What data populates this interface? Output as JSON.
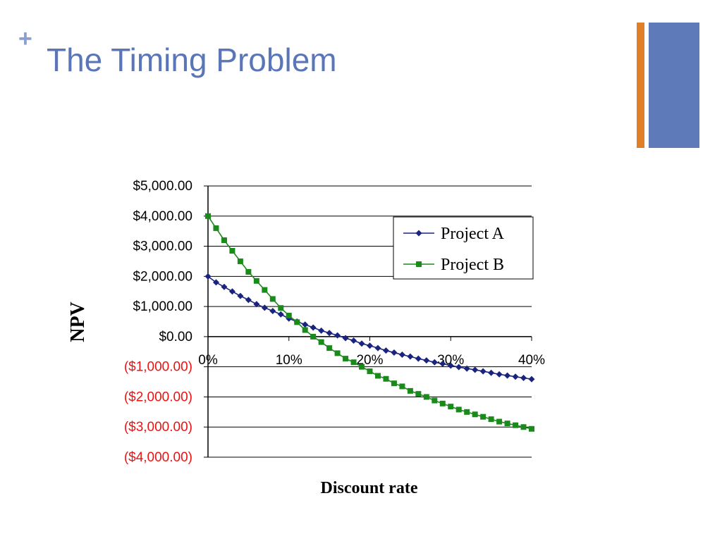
{
  "slide": {
    "plus_mark": "+",
    "title": "The Timing Problem"
  },
  "colors": {
    "title": "#5b76b8",
    "accent_orange": "#e07f27",
    "accent_blue": "#5f7ab9",
    "series_a": "#1a237e",
    "series_b": "#1a8a1a",
    "negative_label": "#ee1111"
  },
  "chart_data": {
    "type": "line",
    "xlabel": "Discount rate",
    "ylabel": "NPV",
    "xlim": [
      0,
      40
    ],
    "ylim": [
      -4000,
      5000
    ],
    "y_ticks": [
      5000,
      4000,
      3000,
      2000,
      1000,
      0,
      -1000,
      -2000,
      -3000,
      -4000
    ],
    "y_tick_labels": [
      "$5,000.00",
      "$4,000.00",
      "$3,000.00",
      "$2,000.00",
      "$1,000.00",
      "$0.00",
      "($1,000.00)",
      "($2,000.00)",
      "($3,000.00)",
      "($4,000.00)"
    ],
    "x_ticks": [
      0,
      10,
      20,
      30,
      40
    ],
    "x_tick_labels": [
      "0%",
      "10%",
      "20%",
      "30%",
      "40%"
    ],
    "grid": true,
    "legend_position": "top-right",
    "x": [
      0,
      1,
      2,
      3,
      4,
      5,
      6,
      7,
      8,
      9,
      10,
      11,
      12,
      13,
      14,
      15,
      16,
      17,
      18,
      19,
      20,
      21,
      22,
      23,
      24,
      25,
      26,
      27,
      28,
      29,
      30,
      31,
      32,
      33,
      34,
      35,
      36,
      37,
      38,
      39,
      40
    ],
    "series": [
      {
        "name": "Project A",
        "marker": "diamond",
        "values": [
          2000,
          1800,
          1650,
          1500,
          1350,
          1220,
          1080,
          960,
          850,
          740,
          600,
          500,
          400,
          300,
          200,
          120,
          40,
          -50,
          -130,
          -230,
          -300,
          -380,
          -460,
          -530,
          -600,
          -660,
          -730,
          -790,
          -850,
          -900,
          -960,
          -1010,
          -1060,
          -1100,
          -1150,
          -1200,
          -1250,
          -1290,
          -1330,
          -1370,
          -1410
        ]
      },
      {
        "name": "Project B",
        "marker": "square",
        "values": [
          4000,
          3600,
          3200,
          2850,
          2500,
          2150,
          1850,
          1550,
          1250,
          950,
          700,
          480,
          220,
          0,
          -180,
          -380,
          -550,
          -730,
          -850,
          -1000,
          -1150,
          -1300,
          -1400,
          -1550,
          -1650,
          -1800,
          -1900,
          -2000,
          -2120,
          -2220,
          -2320,
          -2420,
          -2500,
          -2580,
          -2660,
          -2740,
          -2820,
          -2880,
          -2940,
          -3000,
          -3060
        ]
      }
    ]
  }
}
